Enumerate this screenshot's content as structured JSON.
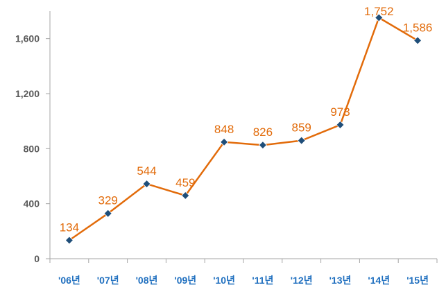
{
  "chart_data": {
    "type": "line",
    "categories": [
      "'06년",
      "'07년",
      "'08년",
      "'09년",
      "'10년",
      "'11년",
      "'12년",
      "'13년",
      "'14년",
      "'15년"
    ],
    "values": [
      134,
      329,
      544,
      459,
      848,
      826,
      859,
      973,
      1752,
      1586
    ],
    "data_labels": [
      "134",
      "329",
      "544",
      "459",
      "848",
      "826",
      "859",
      "973",
      "1,752",
      "1,586"
    ],
    "yticks": [
      {
        "value": 0,
        "label": "0"
      },
      {
        "value": 400,
        "label": "400"
      },
      {
        "value": 800,
        "label": "800"
      },
      {
        "value": 1200,
        "label": "1,200"
      },
      {
        "value": 1600,
        "label": "1,600"
      }
    ],
    "ylim": [
      0,
      1800
    ],
    "grid": false,
    "title": "",
    "xlabel": "",
    "ylabel": "",
    "colors": {
      "line": "#e26b0a",
      "marker": "#1f4e79",
      "data_label": "#e26b0a",
      "x_tick_label": "#1f6fbf",
      "y_tick_label": "#595959",
      "axis": "#a6a6a6"
    }
  }
}
